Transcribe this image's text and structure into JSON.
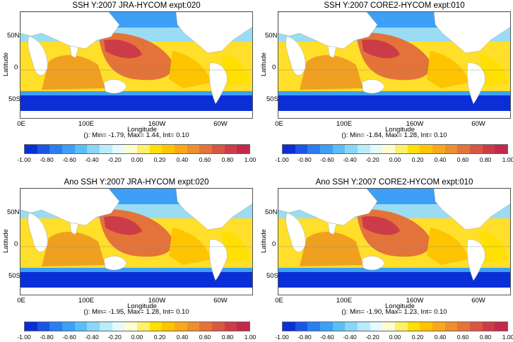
{
  "panels": [
    {
      "title": "SSH Y:2007 JRA-HYCOM expt:020",
      "caption": "(): Min= -1.79, Max= 1.44, Int= 0.10"
    },
    {
      "title": "SSH Y:2007 CORE2-HYCOM expt:010",
      "caption": "(): Min= -1.84, Max= 1.28, Int= 0.10"
    },
    {
      "title": "Ano SSH Y:2007 JRA-HYCOM expt:020",
      "caption": "(): Min= -1.95, Max= 1.28, Int= 0.10"
    },
    {
      "title": "Ano SSH Y:2007 CORE2-HYCOM expt:010",
      "caption": "(): Min= -1.90, Max= 1.23, Int= 0.10"
    }
  ],
  "axes": {
    "ylabel": "Latitude",
    "xlabel": "Longitude",
    "yticks": [
      "50N",
      "0",
      "50S"
    ],
    "xticks": [
      "0E",
      "100E",
      "160W",
      "60W"
    ]
  },
  "colorbar": {
    "ticks": [
      "-1.00",
      "-0.80",
      "-0.60",
      "-0.40",
      "-0.20",
      "0.00",
      "0.20",
      "0.40",
      "0.60",
      "0.80",
      "1.00"
    ],
    "colors": [
      "#0a2fd6",
      "#1a55e6",
      "#2a7ef0",
      "#3d9ff5",
      "#5cbdf6",
      "#8ad6f6",
      "#b8ecfb",
      "#e4fafe",
      "#fdfdd0",
      "#fff06a",
      "#ffe000",
      "#ffc400",
      "#f9a819",
      "#ef8e2e",
      "#e4733a",
      "#d85742",
      "#cc3c48",
      "#c12a4a"
    ]
  },
  "colors": {
    "land": "#ffffff",
    "deep_blue": "#0a2fd6",
    "warm": "#e4733a",
    "yellow": "#ffdf2a"
  }
}
